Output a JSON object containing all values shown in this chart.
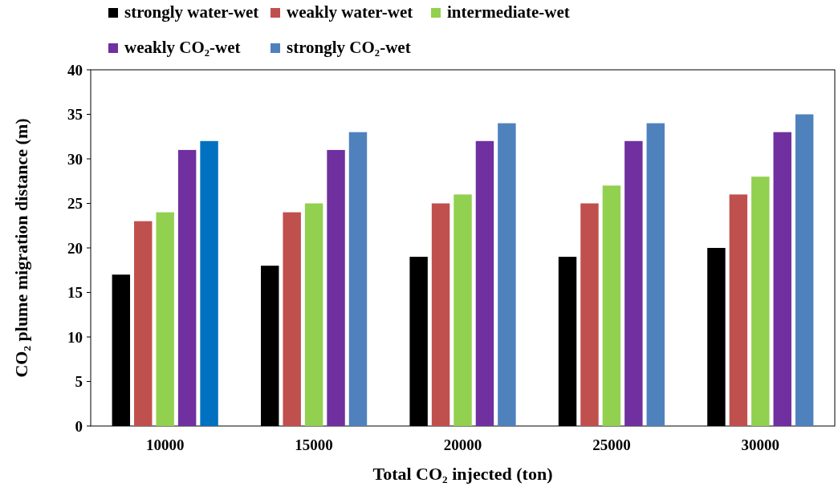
{
  "chart_data": {
    "type": "bar",
    "xlabel": "Total CO₂ injected (ton)",
    "ylabel": "CO₂ plume migration distance (m)",
    "categories": [
      "10000",
      "15000",
      "20000",
      "25000",
      "30000"
    ],
    "series": [
      {
        "name": "strongly water-wet",
        "color": "#000000",
        "values": [
          17,
          18,
          19,
          19,
          20
        ]
      },
      {
        "name": "weakly water-wet",
        "color": "#c0504d",
        "values": [
          23,
          24,
          25,
          25,
          26
        ]
      },
      {
        "name": "intermediate-wet",
        "color": "#92d050",
        "values": [
          24,
          25,
          26,
          27,
          28
        ]
      },
      {
        "name": "weakly CO₂-wet",
        "color": "#7030a0",
        "values": [
          31,
          31,
          32,
          32,
          33
        ]
      },
      {
        "name": "strongly CO₂-wet",
        "color": "#4f81bd",
        "colors": [
          "#0070c0",
          "#4f81bd",
          "#4f81bd",
          "#4f81bd",
          "#4f81bd"
        ],
        "values": [
          32,
          33,
          34,
          34,
          35
        ]
      }
    ],
    "ylim": [
      0,
      40
    ],
    "yticks": [
      0,
      5,
      10,
      15,
      20,
      25,
      30,
      35,
      40
    ],
    "grid": false,
    "legend": "top"
  }
}
